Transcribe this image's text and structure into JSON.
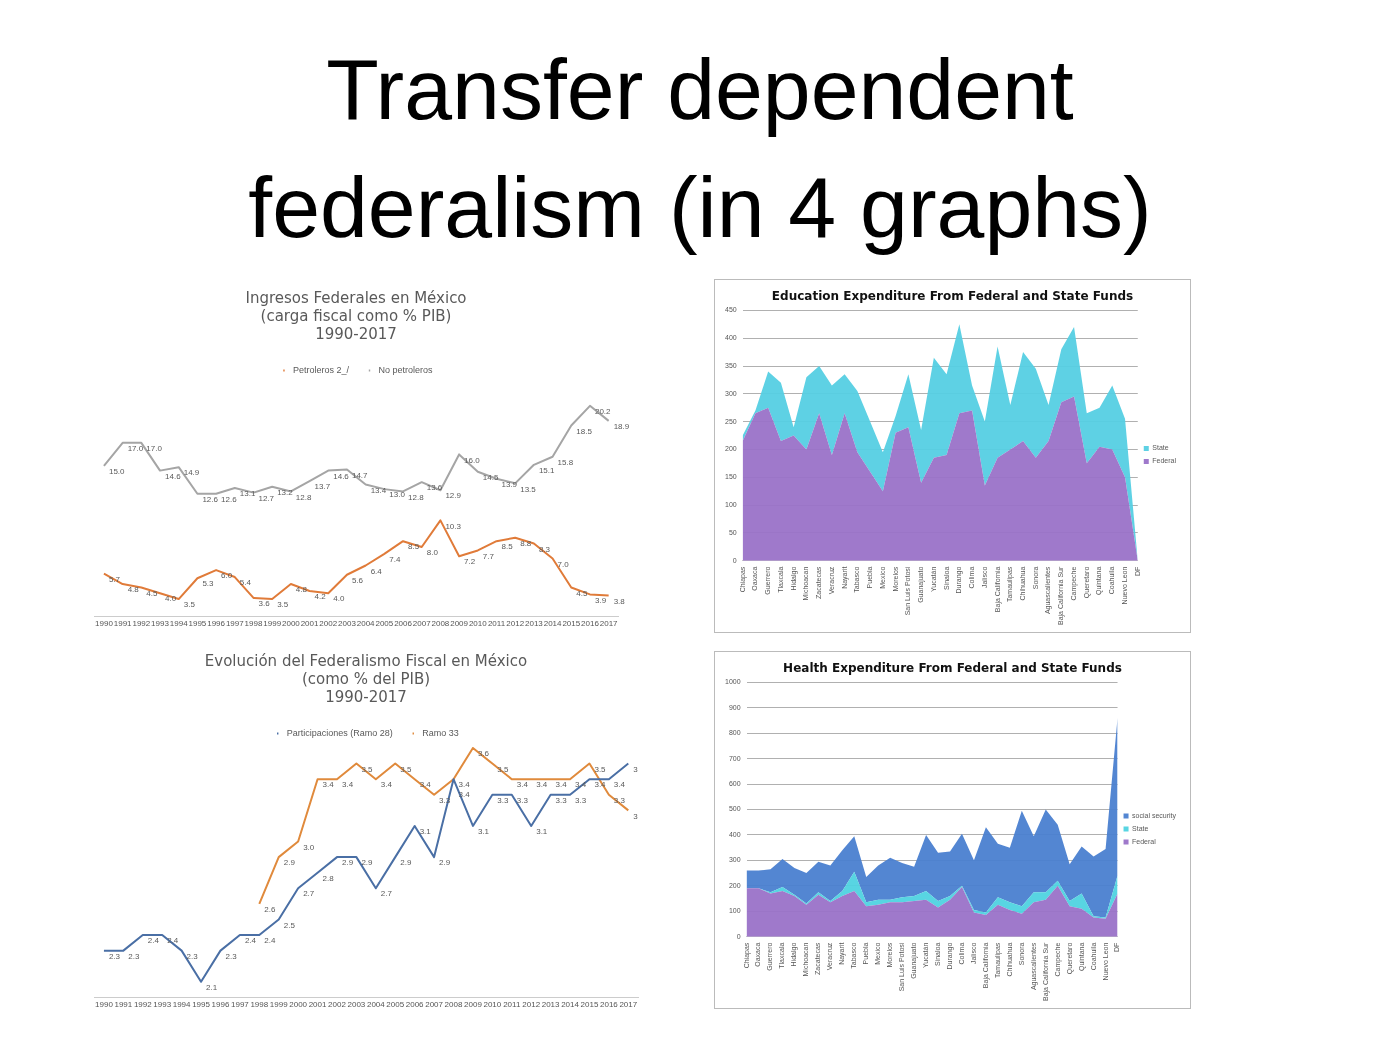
{
  "chart_data": [
    {
      "type": "other",
      "title": "Transfer dependent federalism (in 4 graphs)"
    },
    {
      "type": "line",
      "title": "Ingresos Federales en México\n(carga fiscal como % PIB)\n1990-2017",
      "legend": "top",
      "grid": false,
      "tick_labels": "x",
      "marker": "none",
      "categories": [
        "1990",
        "1991",
        "1992",
        "1993",
        "1994",
        "1995",
        "1996",
        "1997",
        "1998",
        "1999",
        "2000",
        "2001",
        "2002",
        "2003",
        "2004",
        "2005",
        "2006",
        "2007",
        "2008",
        "2009",
        "2010",
        "2011",
        "2012",
        "2013",
        "2014",
        "2015",
        "2016",
        "2017"
      ],
      "series": [
        {
          "name": "Petroleros 2_/",
          "color": "#e07b39",
          "values": [
            5.7,
            4.8,
            4.5,
            4.0,
            3.5,
            5.3,
            6.0,
            5.4,
            3.6,
            3.5,
            4.8,
            4.2,
            4.0,
            5.6,
            6.4,
            7.4,
            8.5,
            8.0,
            10.3,
            7.2,
            7.7,
            8.5,
            8.8,
            8.3,
            7.0,
            4.5,
            3.9,
            3.8
          ],
          "value_labels": [
            "5.7",
            "4.8",
            "4.5",
            "4.0",
            "3.5",
            "5.3",
            "6.0",
            "5.4",
            "3.6",
            "3.5",
            "4.8",
            "4.2",
            "4.0",
            "5.6",
            "6.4",
            "7.4",
            "8.5",
            "8.0",
            "10.3",
            "7.2",
            "7.7",
            "8.5",
            "8.8",
            "8.3",
            "7.0",
            "4.5",
            "3.9",
            "3.8"
          ]
        },
        {
          "name": "No petroleros",
          "color": "#a5a5a5",
          "values": [
            15.0,
            17.0,
            17.0,
            14.6,
            14.9,
            12.6,
            12.6,
            13.1,
            12.7,
            13.2,
            12.8,
            13.7,
            14.6,
            14.7,
            13.4,
            13.0,
            12.8,
            13.6,
            12.9,
            16.0,
            14.5,
            13.9,
            13.5,
            15.1,
            15.8,
            18.5,
            20.2,
            18.9
          ],
          "value_labels": [
            "15.0",
            "17.0",
            "17.0",
            "14.6",
            "14.9",
            "12.6",
            "12.6",
            "13.1",
            "12.7",
            "13.2",
            "12.8",
            "13.7",
            "14.6",
            "14.7",
            "13.4",
            "13.0",
            "12.8",
            "13.6",
            "12.9",
            "16.0",
            "14.5",
            "13.9",
            "13.5",
            "15.1",
            "15.8",
            "18.5",
            "20.2",
            "18.9"
          ]
        }
      ]
    },
    {
      "type": "area",
      "stacked": true,
      "title": "Education Expenditure From Federal and State Funds",
      "legend": "right",
      "grid": "y",
      "marker": "none",
      "ylim": [
        0,
        450
      ],
      "yticks": [
        0,
        50,
        100,
        150,
        200,
        250,
        300,
        350,
        400,
        450
      ],
      "categories": [
        "Chiapas",
        "Oaxaca",
        "Guerrero",
        "Tlaxcala",
        "Hidalgo",
        "Michoacan",
        "Zacatecas",
        "Veracruz",
        "Nayarit",
        "Tabasco",
        "Puebla",
        "Mexico",
        "Morelos",
        "San Luis Potosi",
        "Guanajuato",
        "Yucatán",
        "Sinaloa",
        "Durango",
        "Colima",
        "Jalisco",
        "Baja California",
        "Tamaulipas",
        "Chihuahua",
        "Sonora",
        "Aguascalientes",
        "Baja California Sur",
        "Campeche",
        "Queretaro",
        "Quintana",
        "Coahuila",
        "Nuevo Leon",
        "DF"
      ],
      "series": [
        {
          "name": "Federal",
          "color": "#9a72c8",
          "values": [
            215,
            265,
            275,
            215,
            225,
            200,
            265,
            190,
            265,
            195,
            160,
            125,
            230,
            240,
            140,
            185,
            190,
            265,
            270,
            135,
            185,
            200,
            215,
            185,
            215,
            285,
            295,
            175,
            205,
            200,
            150,
            0
          ]
        },
        {
          "name": "State",
          "color": "#55cfe3",
          "values": [
            10,
            5,
            65,
            105,
            15,
            130,
            85,
            125,
            70,
            110,
            90,
            70,
            30,
            95,
            95,
            180,
            145,
            160,
            45,
            115,
            200,
            80,
            160,
            160,
            65,
            95,
            125,
            90,
            70,
            115,
            105,
            0
          ]
        }
      ]
    },
    {
      "type": "line",
      "title": "Evolución del Federalismo Fiscal en México\n(como % del PIB)\n1990-2017",
      "legend": "top",
      "grid": false,
      "tick_labels": "x",
      "marker": "none",
      "categories": [
        "1990",
        "1991",
        "1992",
        "1993",
        "1994",
        "1995",
        "1996",
        "1997",
        "1998",
        "1999",
        "2000",
        "2001",
        "2002",
        "2003",
        "2004",
        "2005",
        "2006",
        "2007",
        "2008",
        "2009",
        "2010",
        "2011",
        "2012",
        "2013",
        "2014",
        "2015",
        "2016",
        "2017"
      ],
      "series": [
        {
          "name": "Participaciones (Ramo 28)",
          "color": "#4a6fa5",
          "values": [
            2.3,
            2.3,
            2.4,
            2.4,
            2.3,
            2.1,
            2.3,
            2.4,
            2.4,
            2.5,
            2.7,
            2.8,
            2.9,
            2.9,
            2.7,
            2.9,
            3.1,
            2.9,
            3.4,
            3.1,
            3.3,
            3.3,
            3.1,
            3.3,
            3.3,
            3.4,
            3.4,
            3.5
          ],
          "value_labels": [
            "2.3",
            "2.3",
            "2.4",
            "2.4",
            "2.3",
            "2.1",
            "2.3",
            "2.4",
            "2.4",
            "2.5",
            "2.7",
            "2.8",
            "2.9",
            "2.9",
            "2.7",
            "2.9",
            "3.1",
            "2.9",
            "3.4",
            "3.1",
            "3.3",
            "3.3",
            "3.1",
            "3.3",
            "3.3",
            "3.4",
            "3.4",
            "3"
          ]
        },
        {
          "name": "Ramo 33",
          "color": "#e08a3c",
          "values": [
            null,
            null,
            null,
            null,
            null,
            null,
            null,
            null,
            2.6,
            2.9,
            3.0,
            3.4,
            3.4,
            3.5,
            3.4,
            3.5,
            3.4,
            3.3,
            3.4,
            3.6,
            3.5,
            3.4,
            3.4,
            3.4,
            3.4,
            3.5,
            3.3,
            3.2
          ],
          "value_labels": [
            null,
            null,
            null,
            null,
            null,
            null,
            null,
            null,
            "2.6",
            "2.9",
            "3.0",
            "3.4",
            "3.4",
            "3.5",
            "3.4",
            "3.5",
            "3.4",
            "3.3",
            "3.4",
            "3.6",
            "3.5",
            "3.4",
            "3.4",
            "3.4",
            "3.4",
            "3.5",
            "3.3",
            "3"
          ]
        }
      ]
    },
    {
      "type": "area",
      "stacked": true,
      "title": "Health Expenditure From Federal and State Funds",
      "legend": "right",
      "grid": "y",
      "marker": "none",
      "ylim": [
        0,
        1000
      ],
      "yticks": [
        0,
        100,
        200,
        300,
        400,
        500,
        600,
        700,
        800,
        900,
        {
          "value": 1000,
          "label": "1000"
        }
      ],
      "categories": [
        "Chiapas",
        "Oaxaca",
        "Guerrero",
        "Tlaxcala",
        "Hidalgo",
        "Michoacan",
        "Zacatecas",
        "Veracruz",
        "Nayarit",
        "Tabasco",
        "Puebla",
        "Mexico",
        "Morelos",
        "San Luis Potosi",
        "Guanajuato",
        "Yucatán",
        "Sinaloa",
        "Durango",
        "Colima",
        "Jalisco",
        "Baja California",
        "Tamaulipas",
        "Chihuahua",
        "Sonora",
        "Aguascalientes",
        "Baja California Sur",
        "Campeche",
        "Queretaro",
        "Quintana",
        "Coahuila",
        "Nuevo Leon",
        "DF"
      ],
      "series": [
        {
          "name": "Federal",
          "color": "#9a72c8",
          "values": [
            190,
            190,
            170,
            180,
            160,
            125,
            165,
            135,
            160,
            180,
            120,
            125,
            135,
            135,
            140,
            145,
            115,
            145,
            195,
            95,
            85,
            125,
            105,
            90,
            135,
            145,
            200,
            120,
            110,
            75,
            70,
            170
          ]
        },
        {
          "name": "State",
          "color": "#4fd3e0",
          "values": [
            0,
            0,
            5,
            15,
            5,
            5,
            10,
            5,
            20,
            75,
            15,
            20,
            10,
            20,
            20,
            35,
            25,
            15,
            5,
            10,
            10,
            30,
            30,
            30,
            40,
            30,
            20,
            20,
            60,
            5,
            5,
            70
          ]
        },
        {
          "name": "social security",
          "color": "#4a7fd0",
          "values": [
            70,
            70,
            90,
            110,
            105,
            120,
            120,
            140,
            160,
            140,
            100,
            135,
            165,
            135,
            115,
            220,
            190,
            175,
            205,
            195,
            335,
            210,
            215,
            375,
            220,
            325,
            220,
            145,
            185,
            235,
            270,
            620
          ]
        }
      ]
    }
  ]
}
